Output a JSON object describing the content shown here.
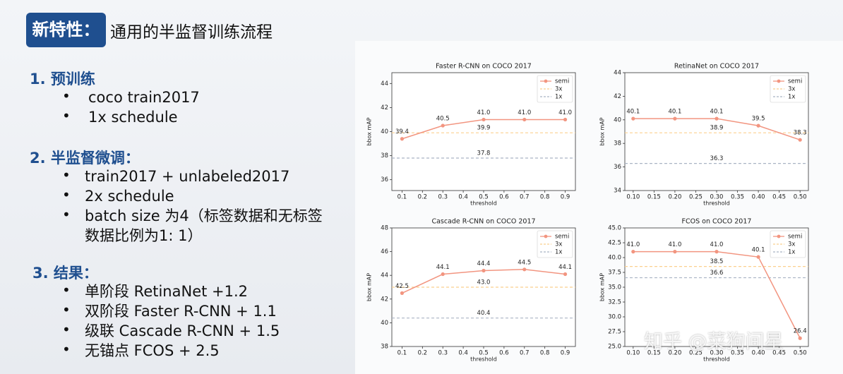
{
  "slide": {
    "tag": "新特性：",
    "title": "通用的半监督训练流程",
    "sections": [
      {
        "heading": "1. 预训练",
        "items": [
          "coco train2017",
          "1x schedule"
        ]
      },
      {
        "heading": "2. 半监督微调：",
        "items": [
          "train2017 + unlabeled2017",
          "2x schedule",
          "batch size 为4（标签数据和无标签数据比例为1: 1）"
        ]
      },
      {
        "heading": "3. 结果：",
        "items": [
          "单阶段 RetinaNet +1.2",
          "双阶段 Faster R-CNN + 1.1",
          "级联 Cascade R-CNN + 1.5",
          "无锚点 FCOS + 2.5"
        ]
      }
    ],
    "watermark": "知乎 @菜狗间星"
  },
  "chart_data": [
    {
      "type": "line",
      "title": "Faster R-CNN on COCO 2017",
      "xlabel": "threshold",
      "ylabel": "bbox mAP",
      "x": [
        0.1,
        0.3,
        0.5,
        0.7,
        0.9
      ],
      "series": [
        {
          "name": "semi",
          "color": "#f29580",
          "values": [
            39.4,
            40.5,
            41.0,
            41.0,
            41.0
          ],
          "value_labels": [
            "39.4",
            "40.5",
            "41.0",
            "41.0",
            "41.0"
          ]
        }
      ],
      "reference_lines": [
        {
          "name": "3x",
          "color": "#fbcf8e",
          "value": 39.9
        },
        {
          "name": "1x",
          "color": "#a9b4c4",
          "value": 37.8
        }
      ],
      "xlim": [
        0.05,
        0.95
      ],
      "xticks": [
        0.1,
        0.2,
        0.3,
        0.4,
        0.5,
        0.6,
        0.7,
        0.8,
        0.9
      ],
      "ylim": [
        35.1,
        44.9
      ],
      "yticks": [
        36,
        38,
        40,
        42,
        44
      ],
      "legend": "upper right"
    },
    {
      "type": "line",
      "title": "RetinaNet on COCO 2017",
      "xlabel": "threshold",
      "ylabel": "bbox mAP",
      "x": [
        0.1,
        0.2,
        0.3,
        0.4,
        0.5
      ],
      "series": [
        {
          "name": "semi",
          "color": "#f29580",
          "values": [
            40.1,
            40.1,
            40.1,
            39.5,
            38.3
          ]
        }
      ],
      "reference_lines": [
        {
          "name": "3x",
          "color": "#fbcf8e",
          "value": 38.9
        },
        {
          "name": "1x",
          "color": "#a9b4c4",
          "value": 36.3
        }
      ],
      "xlim": [
        0.08,
        0.52
      ],
      "xticks": [
        {
          "value": 0.1,
          "label": "0.10"
        },
        0.15,
        {
          "value": 0.2,
          "label": "0.20"
        },
        0.25,
        {
          "value": 0.3,
          "label": "0.30"
        },
        0.35,
        {
          "value": 0.4,
          "label": "0.40"
        },
        0.45,
        {
          "value": 0.5,
          "label": "0.50"
        }
      ],
      "ylim": [
        34,
        44
      ],
      "yticks": [
        34,
        36,
        38,
        40,
        42,
        44
      ],
      "legend": "upper right"
    },
    {
      "type": "line",
      "title": "Cascade R-CNN on COCO 2017",
      "xlabel": "threshold",
      "ylabel": "bbox mAP",
      "x": [
        0.1,
        0.3,
        0.5,
        0.7,
        0.9
      ],
      "series": [
        {
          "name": "semi",
          "color": "#f29580",
          "values": [
            42.5,
            44.1,
            44.4,
            44.5,
            44.1
          ]
        }
      ],
      "reference_lines": [
        {
          "name": "3x",
          "color": "#fbcf8e",
          "value": 43.0,
          "value_label": "43.0"
        },
        {
          "name": "1x",
          "color": "#a9b4c4",
          "value": 40.4
        }
      ],
      "xlim": [
        0.05,
        0.95
      ],
      "xticks": [
        0.1,
        0.2,
        0.3,
        0.4,
        0.5,
        0.6,
        0.7,
        0.8,
        0.9
      ],
      "ylim": [
        38,
        48
      ],
      "yticks": [
        38,
        40,
        42,
        44,
        46,
        48
      ],
      "legend": "upper right"
    },
    {
      "type": "line",
      "title": "FCOS on COCO 2017",
      "xlabel": "threshold",
      "ylabel": "bbox mAP",
      "x": [
        0.1,
        0.2,
        0.3,
        0.4,
        0.5
      ],
      "series": [
        {
          "name": "semi",
          "color": "#f29580",
          "values": [
            41.0,
            41.0,
            41.0,
            40.1,
            26.4
          ],
          "value_labels": [
            "41.0",
            "41.0",
            "41.0",
            "40.1",
            "26.4"
          ]
        }
      ],
      "reference_lines": [
        {
          "name": "3x",
          "color": "#fbcf8e",
          "value": 38.5
        },
        {
          "name": "1x",
          "color": "#a9b4c4",
          "value": 36.6
        }
      ],
      "xlim": [
        0.08,
        0.52
      ],
      "xticks": [
        {
          "value": 0.1,
          "label": "0.10"
        },
        0.15,
        {
          "value": 0.2,
          "label": "0.20"
        },
        0.25,
        {
          "value": 0.3,
          "label": "0.30"
        },
        0.35,
        {
          "value": 0.4,
          "label": "0.40"
        },
        0.45,
        {
          "value": 0.5,
          "label": "0.50"
        }
      ],
      "ylim": [
        25,
        45
      ],
      "yticks": [
        {
          "value": 25,
          "label": "25.0"
        },
        27.5,
        {
          "value": 30,
          "label": "30.0"
        },
        32.5,
        {
          "value": 35,
          "label": "35.0"
        },
        37.5,
        {
          "value": 40,
          "label": "40.0"
        },
        42.5,
        {
          "value": 45,
          "label": "45.0"
        }
      ],
      "legend": "upper right"
    }
  ]
}
